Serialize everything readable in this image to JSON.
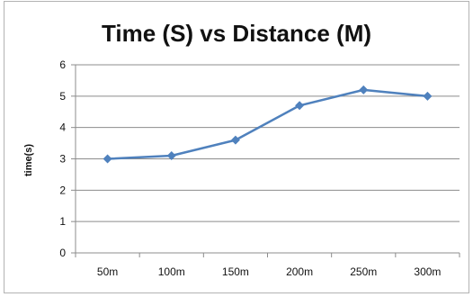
{
  "chart_data": {
    "type": "line",
    "title": "Time (S) vs Distance (M)",
    "xlabel": "",
    "ylabel": "time(s)",
    "categories": [
      "50m",
      "100m",
      "150m",
      "200m",
      "250m",
      "300m"
    ],
    "series": [
      {
        "values": [
          3,
          3.1,
          3.6,
          4.7,
          5.2,
          5.0
        ]
      }
    ],
    "ylim": [
      0,
      6
    ],
    "yticks": [
      "0",
      "1",
      "2",
      "3",
      "4",
      "5",
      "6"
    ],
    "grid": true,
    "legend": "none",
    "line_color": "#4F81BD",
    "grid_color": "#8c8c8c"
  }
}
